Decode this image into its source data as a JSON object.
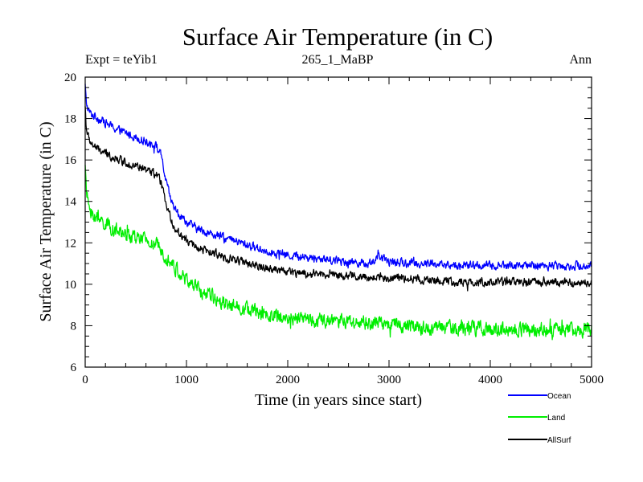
{
  "chart_data": {
    "type": "line",
    "title": "Surface Air Temperature (in C)",
    "subtitle": "265_1_MaBP",
    "experiment_label": "Expt = teYib1",
    "season_label": "Ann",
    "xlabel": "Time (in years since start)",
    "ylabel": "Surface Air Temperature (in C)",
    "xlim": [
      0,
      5000
    ],
    "ylim": [
      6,
      20
    ],
    "xticks": [
      0,
      1000,
      2000,
      3000,
      4000,
      5000
    ],
    "yticks": [
      6,
      8,
      10,
      12,
      14,
      16,
      18,
      20
    ],
    "legend_position": "bottom-right, below plot",
    "series": [
      {
        "name": "Ocean",
        "color": "#0000ff",
        "noise": 0.22,
        "x": [
          0,
          10,
          30,
          60,
          100,
          200,
          300,
          400,
          500,
          600,
          700,
          750,
          800,
          850,
          900,
          1000,
          1100,
          1200,
          1400,
          1600,
          1800,
          2000,
          2200,
          2400,
          2600,
          2800,
          2900,
          3000,
          3200,
          3400,
          3600,
          3800,
          4000,
          4200,
          4400,
          4600,
          4800,
          5000
        ],
        "y": [
          19.6,
          18.8,
          18.4,
          18.2,
          18.1,
          17.8,
          17.5,
          17.3,
          17.1,
          16.9,
          16.7,
          16.2,
          14.9,
          14.0,
          13.5,
          13.0,
          12.7,
          12.5,
          12.2,
          11.9,
          11.6,
          11.4,
          11.3,
          11.2,
          11.1,
          11.0,
          11.3,
          11.1,
          11.0,
          11.0,
          10.9,
          10.9,
          10.9,
          10.9,
          10.9,
          10.9,
          10.9,
          10.9
        ]
      },
      {
        "name": "Land",
        "color": "#00ee00",
        "noise": 0.38,
        "x": [
          0,
          10,
          30,
          60,
          100,
          200,
          300,
          400,
          500,
          600,
          700,
          800,
          900,
          1000,
          1100,
          1200,
          1400,
          1600,
          1800,
          2000,
          2200,
          2400,
          2600,
          2800,
          3000,
          3200,
          3400,
          3600,
          3800,
          4000,
          4200,
          4400,
          4600,
          4800,
          5000
        ],
        "y": [
          16.0,
          14.5,
          13.9,
          13.5,
          13.2,
          12.9,
          12.6,
          12.4,
          12.2,
          12.1,
          11.9,
          11.4,
          10.7,
          10.2,
          9.8,
          9.5,
          9.1,
          8.8,
          8.5,
          8.4,
          8.3,
          8.2,
          8.2,
          8.1,
          8.1,
          8.0,
          7.9,
          7.9,
          7.9,
          7.8,
          7.8,
          7.8,
          7.8,
          7.8,
          7.8
        ]
      },
      {
        "name": "AllSurf",
        "color": "#000000",
        "noise": 0.22,
        "x": [
          0,
          10,
          30,
          60,
          100,
          200,
          300,
          400,
          500,
          600,
          700,
          750,
          800,
          850,
          900,
          1000,
          1100,
          1200,
          1400,
          1600,
          1800,
          2000,
          2200,
          2400,
          2600,
          2800,
          2900,
          3000,
          3200,
          3400,
          3600,
          3800,
          4000,
          4200,
          4400,
          4600,
          4800,
          5000
        ],
        "y": [
          18.6,
          17.6,
          17.1,
          16.8,
          16.6,
          16.3,
          16.1,
          15.9,
          15.7,
          15.5,
          15.3,
          14.9,
          13.8,
          13.1,
          12.6,
          12.1,
          11.8,
          11.6,
          11.3,
          11.0,
          10.8,
          10.6,
          10.5,
          10.5,
          10.4,
          10.3,
          10.4,
          10.3,
          10.3,
          10.2,
          10.1,
          10.1,
          10.1,
          10.1,
          10.1,
          10.1,
          10.1,
          10.1
        ]
      }
    ]
  }
}
